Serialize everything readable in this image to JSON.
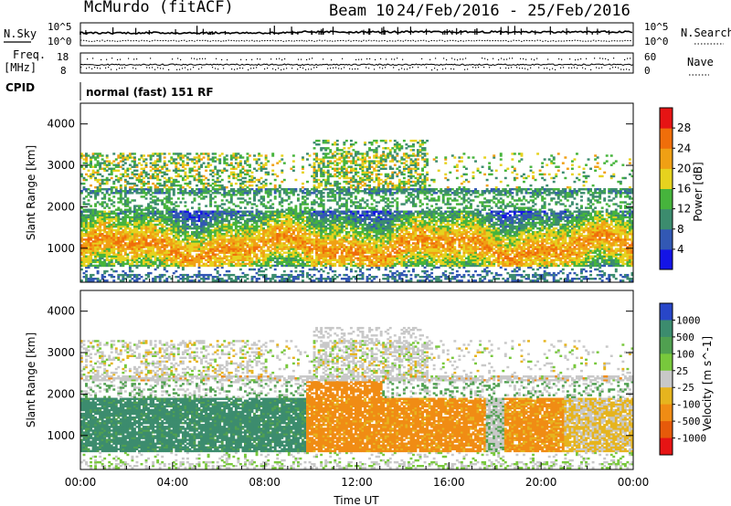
{
  "header": {
    "station": "McMurdo (fitACF)",
    "beam": "Beam 10",
    "date_range": "24/Feb/2016 - 25/Feb/2016"
  },
  "top_panels": {
    "nsky_label": "N.Sky",
    "nsearch_label": "N.Search",
    "nsky_ticks": [
      "10^5",
      "10^0"
    ],
    "nsearch_ticks": [
      "10^5",
      "10^0"
    ],
    "freq_label_1": "Freq.",
    "freq_label_2": "[MHz]",
    "freq_ticks": [
      "18",
      "8"
    ],
    "nave_label": "Nave",
    "nave_ticks": [
      "60",
      "0"
    ],
    "cpid_label": "CPID",
    "cpid_text": "normal (fast) 151 RF"
  },
  "chart_data": [
    {
      "type": "heatmap",
      "title": "",
      "quantity": "Power",
      "ylabel": "Slant Range [km]",
      "xlabel": "",
      "x_ticks": [
        "00:00",
        "04:00",
        "08:00",
        "12:00",
        "16:00",
        "20:00",
        "00:00"
      ],
      "x_range_hours": [
        0,
        24
      ],
      "y_ticks": [
        1000,
        2000,
        3000,
        4000
      ],
      "ylim": [
        180,
        4500
      ],
      "colorbar_label": "Power [dB]",
      "colorbar_ticks": [
        4,
        8,
        12,
        16,
        20,
        24,
        28
      ],
      "colorbar_range": [
        0,
        32
      ],
      "colors": [
        "#1414e6",
        "#3258b4",
        "#3c8c6e",
        "#46b43c",
        "#e6d21e",
        "#f0a014",
        "#f06e0a",
        "#e61414"
      ]
    },
    {
      "type": "heatmap",
      "title": "",
      "quantity": "Velocity",
      "ylabel": "Slant Range [km]",
      "xlabel": "Time UT",
      "x_ticks": [
        "00:00",
        "04:00",
        "08:00",
        "12:00",
        "16:00",
        "20:00",
        "00:00"
      ],
      "x_range_hours": [
        0,
        24
      ],
      "y_ticks": [
        1000,
        2000,
        3000,
        4000
      ],
      "ylim": [
        180,
        4500
      ],
      "colorbar_label": "Velocity [m s^-1]",
      "colorbar_ticks": [
        1000,
        500,
        100,
        25,
        -25,
        -100,
        -500,
        -1000
      ],
      "colors": [
        "#2846c8",
        "#3c8c6e",
        "#50a050",
        "#78c83c",
        "#c8c8c8",
        "#e6b41e",
        "#f08c14",
        "#e65a0a",
        "#e61414"
      ]
    }
  ]
}
